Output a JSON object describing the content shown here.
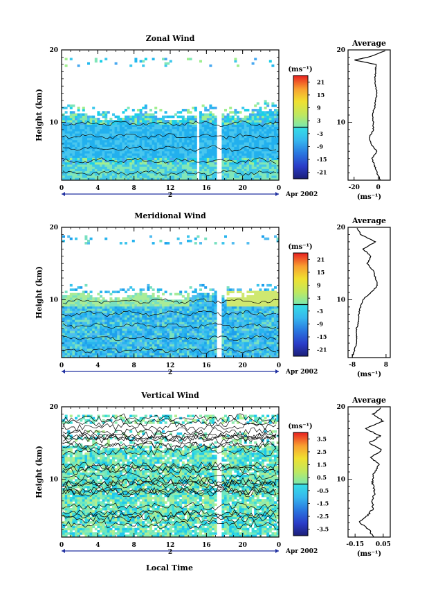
{
  "units_label": "(ms⁻¹)",
  "date_label": "Apr 2002",
  "day_label": "2",
  "xlabel": "Local Time",
  "ylabel": "Height (km)",
  "avg_title": "Average",
  "chart_data": [
    {
      "type": "heatmap",
      "title": "Zonal Wind",
      "xlabel": "",
      "ylabel": "Height (km)",
      "x_ticks": [
        "0",
        "4",
        "8",
        "12",
        "16",
        "20",
        "0"
      ],
      "y_ticks": [
        "20",
        "10"
      ],
      "xlim": [
        0,
        24
      ],
      "ylim": [
        2,
        20
      ],
      "colorbar": {
        "unit": "(ms⁻¹)",
        "ticks": [
          "21",
          "15",
          "9",
          "3",
          "-3",
          "-9",
          "-15",
          "-21"
        ],
        "range": [
          -24,
          24
        ]
      },
      "average_profile": {
        "title": "Average",
        "x_ticks": [
          "-20",
          "0"
        ],
        "xlim": [
          -25,
          10
        ],
        "xlabel": "(ms⁻¹)",
        "height": [
          2,
          3,
          4,
          5,
          6,
          7,
          8,
          9,
          10,
          11,
          12,
          13,
          14,
          15,
          16,
          17,
          18,
          18.6,
          19,
          20
        ],
        "value": [
          2,
          -1,
          -3,
          -5,
          -1,
          -6,
          -7,
          -4,
          -4,
          -5,
          -3,
          -2,
          -1,
          -2,
          -3,
          -2,
          -2,
          -20,
          -8,
          8
        ]
      }
    },
    {
      "type": "heatmap",
      "title": "Meridional Wind",
      "xlabel": "",
      "ylabel": "Height (km)",
      "x_ticks": [
        "0",
        "4",
        "8",
        "12",
        "16",
        "20",
        "0"
      ],
      "y_ticks": [
        "20",
        "10"
      ],
      "xlim": [
        0,
        24
      ],
      "ylim": [
        2,
        20
      ],
      "colorbar": {
        "unit": "(ms⁻¹)",
        "ticks": [
          "21",
          "15",
          "9",
          "3",
          "-3",
          "-9",
          "-15",
          "-21"
        ],
        "range": [
          -24,
          24
        ]
      },
      "average_profile": {
        "title": "Average",
        "x_ticks": [
          "-8",
          "8"
        ],
        "xlim": [
          -10,
          10
        ],
        "xlabel": "(ms⁻¹)",
        "height": [
          2,
          3,
          4,
          5,
          6,
          7,
          8,
          9,
          10,
          11,
          12,
          13,
          14,
          15,
          16,
          17,
          18,
          19,
          20
        ],
        "value": [
          -8,
          -7,
          -6,
          -6,
          -6,
          -5,
          -5,
          -4,
          -3,
          1,
          4,
          3,
          2,
          -1,
          1,
          -3,
          3,
          -4,
          -6
        ]
      }
    },
    {
      "type": "heatmap",
      "title": "Vertical Wind",
      "xlabel": "Local Time",
      "ylabel": "Height (km)",
      "x_ticks": [
        "0",
        "4",
        "8",
        "12",
        "16",
        "20",
        "0"
      ],
      "y_ticks": [
        "20",
        "10"
      ],
      "xlim": [
        0,
        24
      ],
      "ylim": [
        2,
        20
      ],
      "colorbar": {
        "unit": "(ms⁻¹)",
        "ticks": [
          "3.5",
          "2.5",
          "1.5",
          "0.5",
          "-0.5",
          "-1.5",
          "-2.5",
          "-3.5"
        ],
        "range": [
          -4,
          4
        ]
      },
      "average_profile": {
        "title": "Average",
        "x_ticks": [
          "-0.15",
          "0.05"
        ],
        "xlim": [
          -0.2,
          0.1
        ],
        "xlabel": "(ms⁻¹)",
        "height": [
          2,
          3,
          4,
          5,
          6,
          7,
          8,
          9,
          10,
          11,
          12,
          13,
          14,
          15,
          16,
          17,
          18,
          19,
          20
        ],
        "value": [
          -0.02,
          -0.05,
          -0.12,
          -0.06,
          -0.02,
          -0.03,
          -0.01,
          -0.02,
          -0.03,
          -0.01,
          0.02,
          -0.04,
          0.04,
          -0.05,
          0.03,
          -0.08,
          0.05,
          -0.02,
          0.04
        ]
      }
    }
  ]
}
